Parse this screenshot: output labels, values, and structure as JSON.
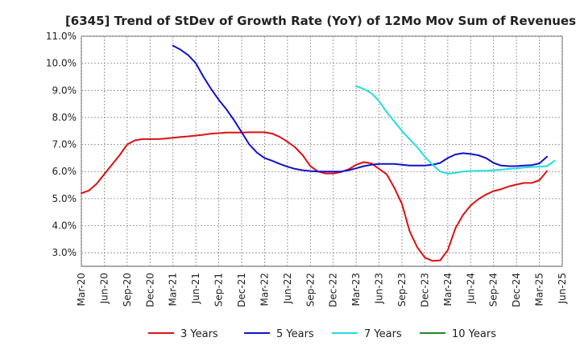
{
  "chart_data": {
    "type": "line",
    "title": "[6345]  Trend of StDev of Growth Rate (YoY) of 12Mo Mov Sum of Revenues",
    "xlabel": "",
    "ylabel": "",
    "ylim": [
      2.5,
      11.0
    ],
    "y_ticks": [
      3.0,
      4.0,
      5.0,
      6.0,
      7.0,
      8.0,
      9.0,
      10.0,
      11.0
    ],
    "y_tick_labels": [
      "3.0%",
      "4.0%",
      "5.0%",
      "6.0%",
      "7.0%",
      "8.0%",
      "9.0%",
      "10.0%",
      "11.0%"
    ],
    "x_ticks": [
      "Mar-20",
      "Jun-20",
      "Sep-20",
      "Dec-20",
      "Mar-21",
      "Jun-21",
      "Sep-21",
      "Dec-21",
      "Mar-22",
      "Jun-22",
      "Sep-22",
      "Dec-22",
      "Mar-23",
      "Jun-23",
      "Sep-23",
      "Dec-23",
      "Mar-24",
      "Jun-24",
      "Sep-24",
      "Dec-24",
      "Mar-25",
      "Jun-25"
    ],
    "grid": true,
    "legend_position": "bottom",
    "series": [
      {
        "name": "3 Years",
        "color": "#dd1111",
        "start_month_index": 0,
        "values": [
          5.2,
          5.3,
          5.55,
          5.9,
          6.25,
          6.6,
          7.0,
          7.15,
          7.2,
          7.2,
          7.2,
          7.22,
          7.25,
          7.28,
          7.3,
          7.33,
          7.36,
          7.4,
          7.42,
          7.44,
          7.44,
          7.44,
          7.45,
          7.45,
          7.45,
          7.4,
          7.28,
          7.1,
          6.9,
          6.6,
          6.2,
          6.0,
          5.93,
          5.93,
          5.98,
          6.08,
          6.25,
          6.35,
          6.3,
          6.1,
          5.9,
          5.4,
          4.8,
          3.8,
          3.2,
          2.82,
          2.7,
          2.72,
          3.1,
          3.9,
          4.4,
          4.75,
          4.98,
          5.15,
          5.28,
          5.35,
          5.45,
          5.52,
          5.58,
          5.58,
          5.68,
          6.02
        ]
      },
      {
        "name": "5 Years",
        "color": "#1111cc",
        "start_month_index": 12,
        "values": [
          10.65,
          10.5,
          10.3,
          10.0,
          9.5,
          9.05,
          8.65,
          8.3,
          7.9,
          7.45,
          7.0,
          6.7,
          6.5,
          6.4,
          6.28,
          6.18,
          6.1,
          6.05,
          6.02,
          6.0,
          6.0,
          6.0,
          6.0,
          6.05,
          6.12,
          6.2,
          6.25,
          6.28,
          6.28,
          6.28,
          6.25,
          6.22,
          6.22,
          6.22,
          6.25,
          6.32,
          6.5,
          6.63,
          6.68,
          6.65,
          6.6,
          6.5,
          6.32,
          6.22,
          6.2,
          6.2,
          6.22,
          6.24,
          6.3,
          6.55
        ]
      },
      {
        "name": "7 Years",
        "color": "#22dddd",
        "start_month_index": 36,
        "values": [
          9.15,
          9.05,
          8.9,
          8.6,
          8.2,
          7.85,
          7.5,
          7.2,
          6.9,
          6.55,
          6.25,
          6.0,
          5.92,
          5.95,
          6.0,
          6.02,
          6.03,
          6.03,
          6.05,
          6.07,
          6.1,
          6.12,
          6.15,
          6.17,
          6.18,
          6.2,
          6.4
        ]
      },
      {
        "name": "10 Years",
        "color": "#228822",
        "start_month_index": 0,
        "values": []
      }
    ]
  }
}
